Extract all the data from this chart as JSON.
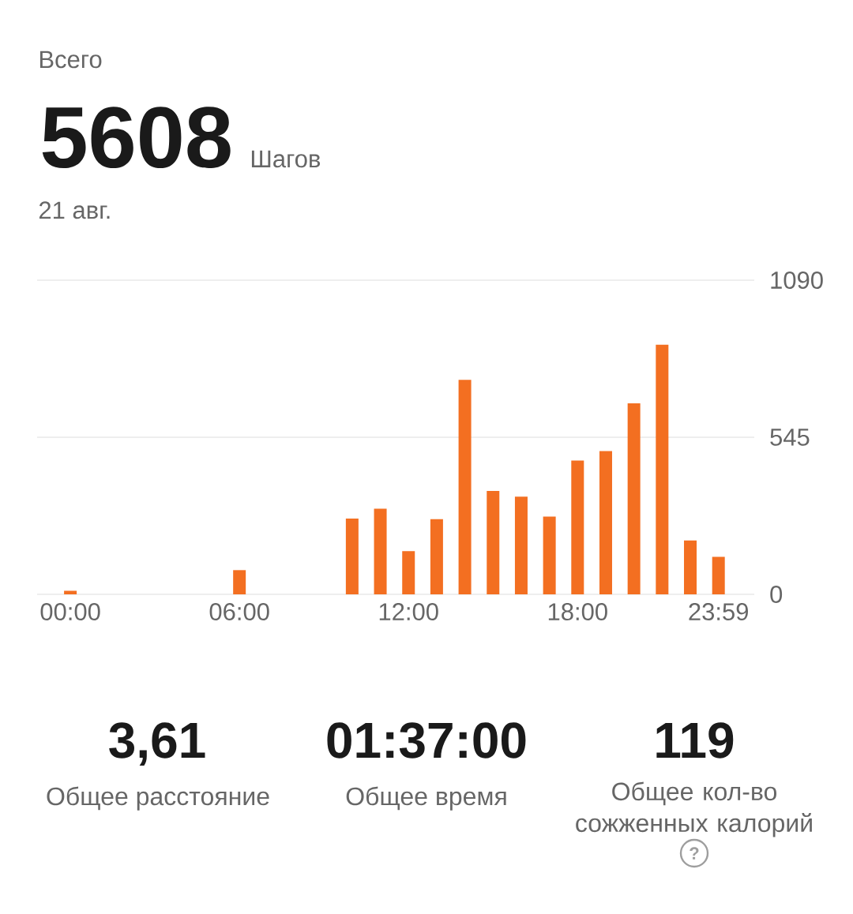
{
  "chart_data": {
    "type": "bar",
    "title": "Всего",
    "subtitle": "21 авг.",
    "categories": [
      "00:00",
      null,
      null,
      null,
      null,
      null,
      "06:00",
      null,
      null,
      null,
      null,
      null,
      "12:00",
      null,
      null,
      null,
      null,
      null,
      "18:00",
      null,
      null,
      null,
      null,
      "23:59"
    ],
    "values": [
      12,
      0,
      0,
      0,
      0,
      0,
      84,
      0,
      0,
      0,
      263,
      297,
      150,
      261,
      744,
      359,
      339,
      270,
      464,
      497,
      663,
      866,
      187,
      130
    ],
    "color": "#f36f21",
    "ylim": [
      0,
      1090
    ],
    "yticks": [
      0,
      545,
      1090
    ],
    "grid": "y",
    "annotations": [
      "5608",
      "Шагов",
      "3,61",
      "Общее расстояние",
      "01:37:00",
      "Общее время",
      "119",
      "Общее кол-во сожженных калорий",
      "?"
    ]
  }
}
